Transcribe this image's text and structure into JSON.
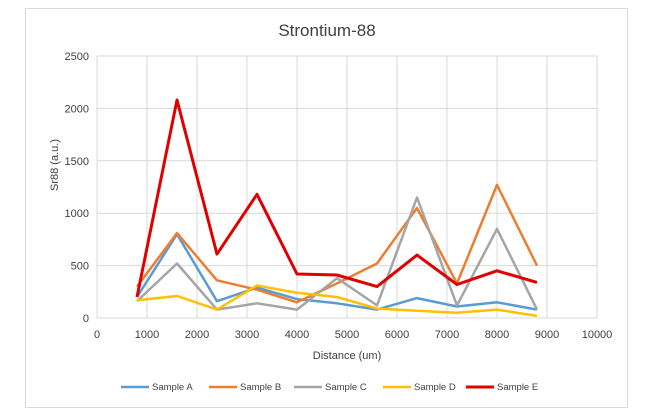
{
  "chart_data": {
    "type": "line",
    "title": "Strontium-88",
    "xlabel": "Distance (um)",
    "ylabel": "Sr88 (a.u.)",
    "xlim": [
      0,
      10000
    ],
    "ylim": [
      0,
      2500
    ],
    "xticks": [
      "0",
      "1000",
      "2000",
      "3000",
      "4000",
      "5000",
      "6000",
      "7000",
      "8000",
      "9000",
      "10000"
    ],
    "yticks": [
      "0",
      "500",
      "1000",
      "1500",
      "2000",
      "2500"
    ],
    "grid": true,
    "legend": "bottom",
    "x": [
      800,
      1600,
      2400,
      3200,
      4000,
      4800,
      5600,
      6400,
      7200,
      8000,
      8800
    ],
    "series": [
      {
        "name": "Sample A",
        "color": "#5b9bd5",
        "values": [
          200,
          800,
          160,
          290,
          180,
          140,
          80,
          190,
          110,
          150,
          80
        ]
      },
      {
        "name": "Sample B",
        "color": "#ed7d31",
        "values": [
          300,
          810,
          360,
          270,
          150,
          330,
          520,
          1050,
          330,
          1270,
          500
        ]
      },
      {
        "name": "Sample C",
        "color": "#a5a5a5",
        "values": [
          160,
          520,
          80,
          140,
          80,
          380,
          120,
          1150,
          120,
          850,
          80
        ]
      },
      {
        "name": "Sample D",
        "color": "#ffc000",
        "values": [
          170,
          210,
          80,
          310,
          240,
          200,
          90,
          70,
          50,
          80,
          20
        ]
      },
      {
        "name": "Sample E",
        "color": "#e00000",
        "values": [
          200,
          2080,
          610,
          1180,
          420,
          410,
          300,
          600,
          320,
          450,
          340
        ]
      }
    ]
  }
}
